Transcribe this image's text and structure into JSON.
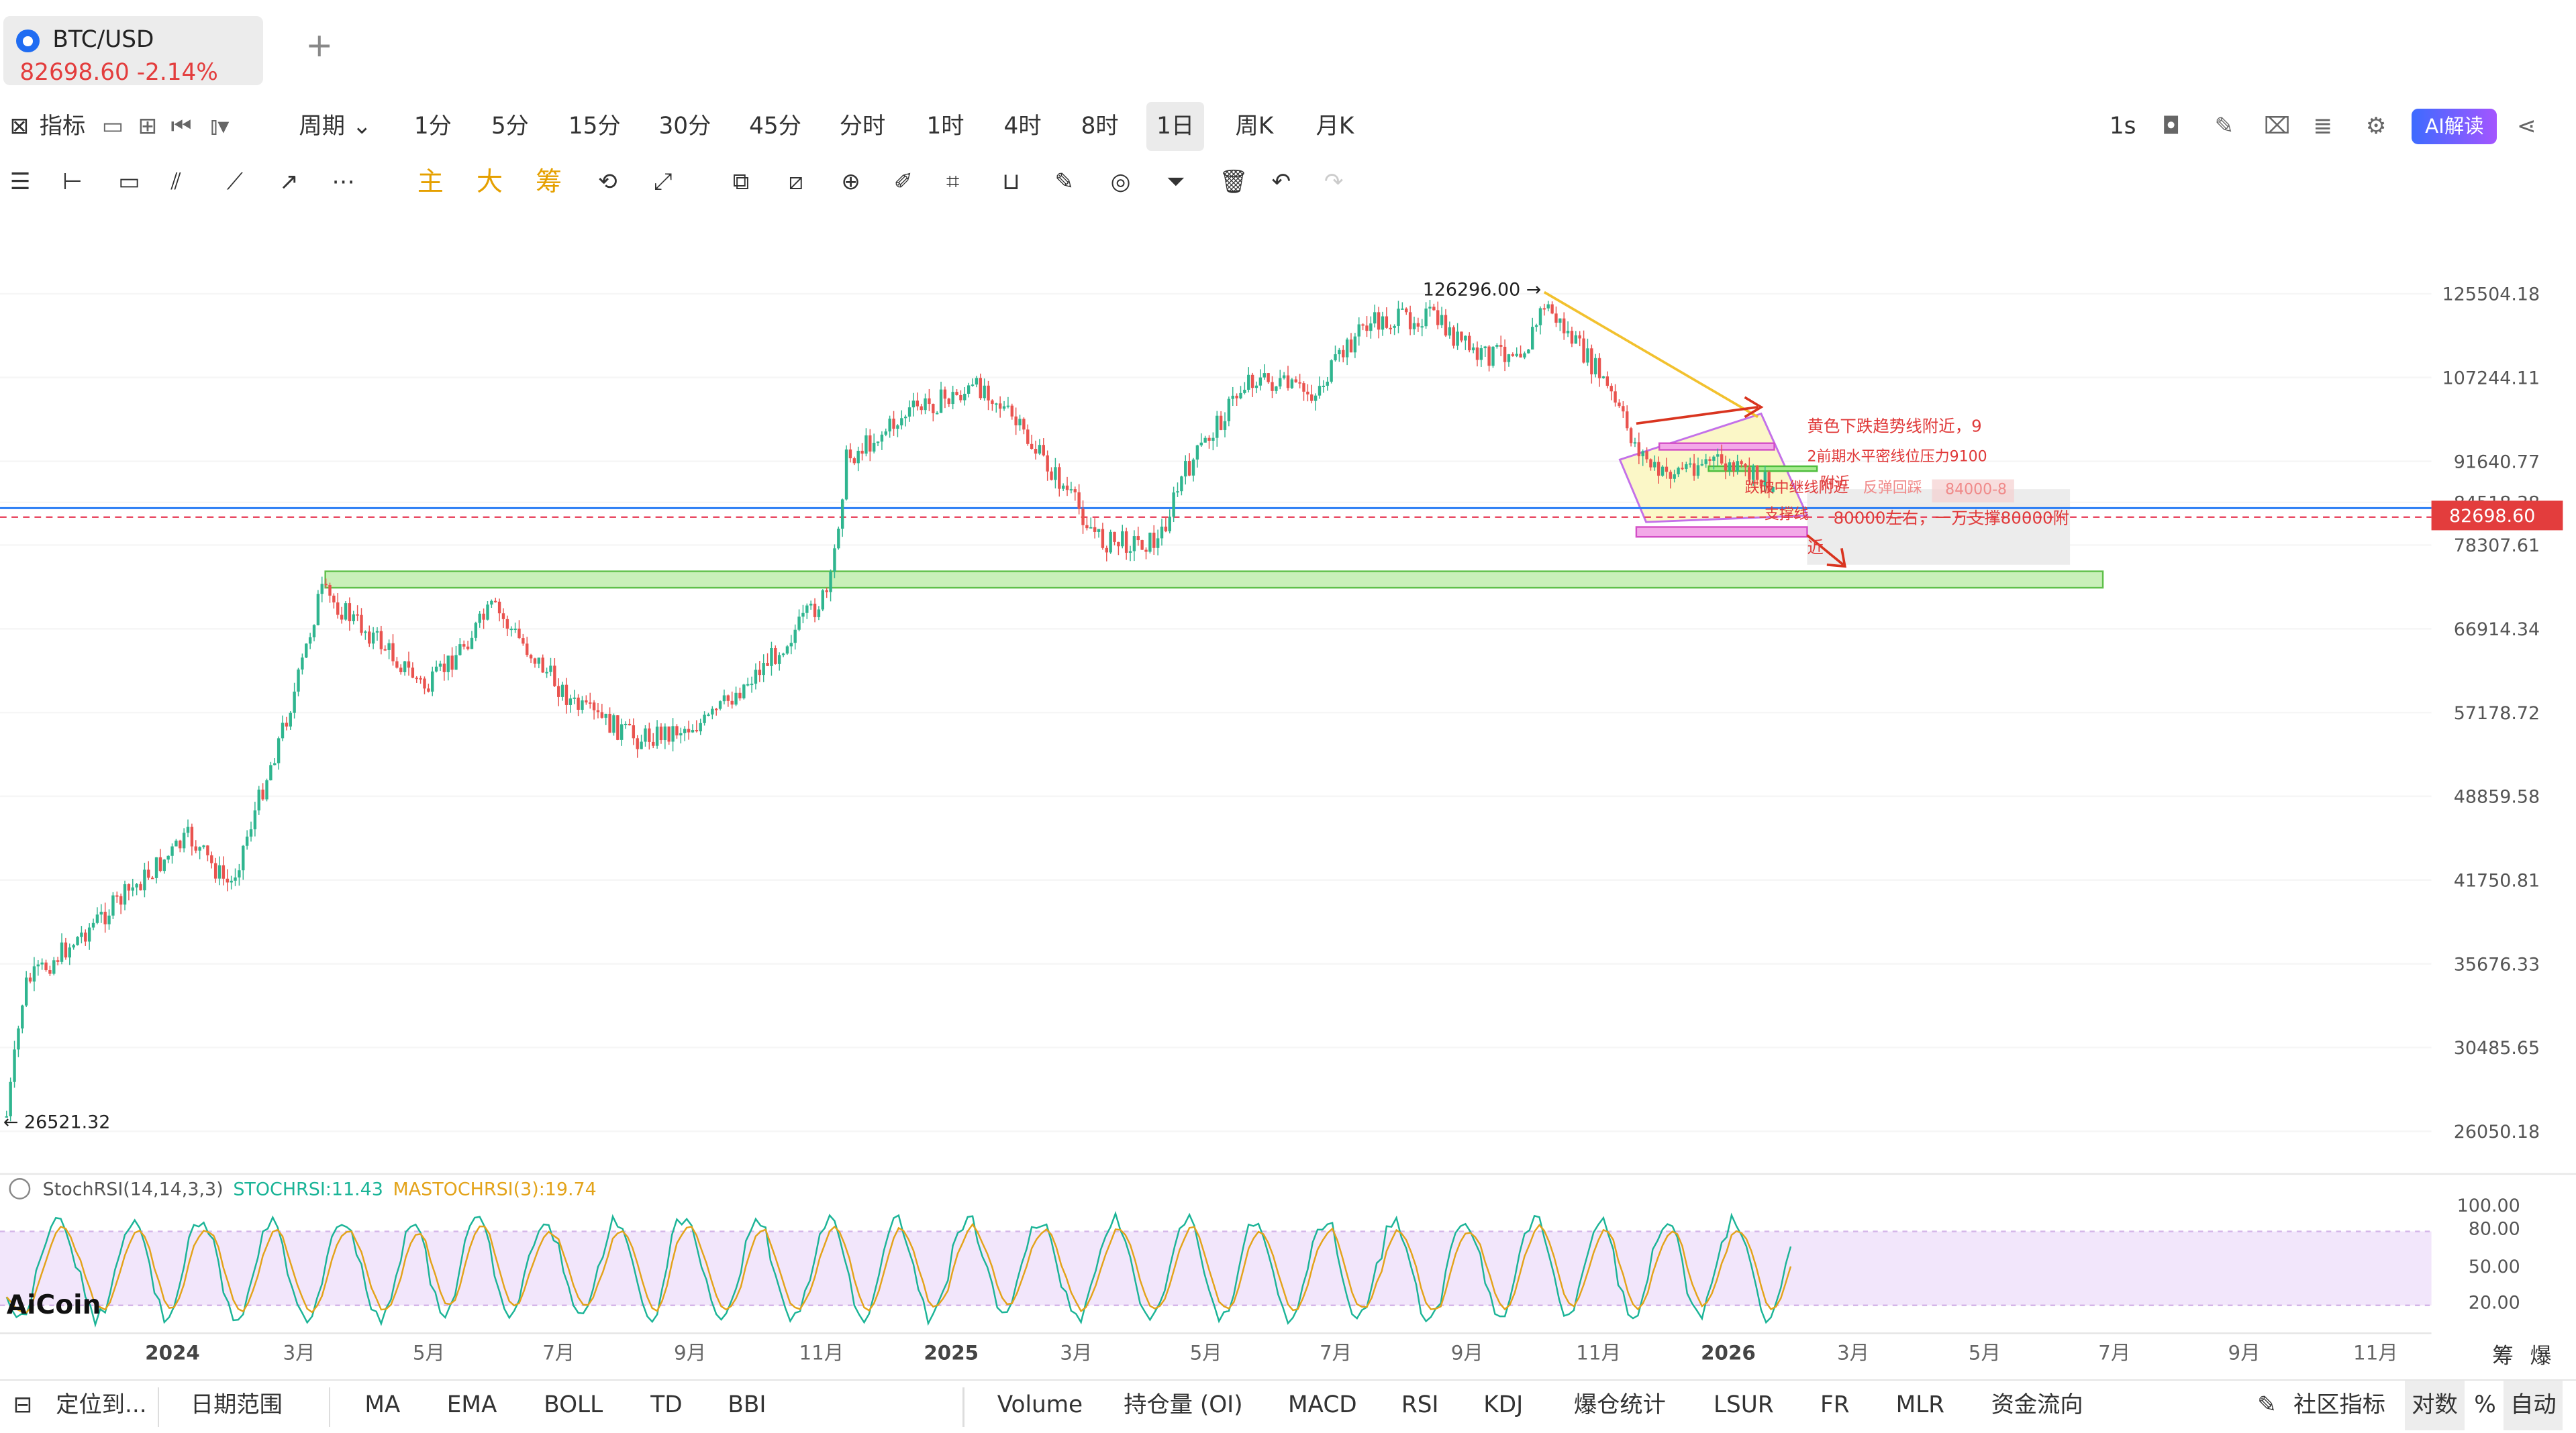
{
  "symbol": {
    "name": "BTC/USD",
    "price": "82698.60",
    "change": "-2.14%",
    "add_tab": "+"
  },
  "toolbar1": {
    "indicators": "指标",
    "period": "周期",
    "timeframes": [
      "1分",
      "5分",
      "15分",
      "30分",
      "45分",
      "分时",
      "1时",
      "4时",
      "8时",
      "1日",
      "周K",
      "月K"
    ],
    "selected": "1日",
    "interval": "1s",
    "ai_button": "AI解读"
  },
  "toolbar2": {
    "main": "主",
    "big": "大",
    "chips": "筹"
  },
  "chart_data": {
    "type": "candlestick",
    "symbol": "BTC/USD",
    "interval": "1日",
    "y_axis_ticks": [
      "125504.18",
      "107244.11",
      "91640.77",
      "84518.38",
      "78307.61",
      "66914.34",
      "57178.72",
      "48859.58",
      "41750.81",
      "35676.33",
      "30485.65",
      "26050.18"
    ],
    "x_axis_ticks": [
      "2024",
      "3月",
      "5月",
      "7月",
      "9月",
      "11月",
      "2025",
      "3月",
      "5月",
      "7月",
      "9月",
      "11月",
      "2026",
      "3月",
      "5月",
      "7月",
      "9月",
      "11月"
    ],
    "last_price": "82698.60",
    "high_label": "126296.00",
    "low_label": "26521.32",
    "annotations": [
      "黄色下跌趋势线附近，9",
      "2前期水平密线位压力9100",
      "跌破中继线附近",
      "附近",
      "反弹回踩",
      "84000-8",
      "支撑线",
      "80000左右，一万支撑80000附",
      "近"
    ],
    "oscillator": {
      "label": "StochRSI(14,14,3,3)",
      "stochrsi": "STOCHRSI:11.43",
      "mastochrsi": "MASTOCHRSI(3):19.74",
      "ticks": [
        "100.00",
        "80.00",
        "50.00",
        "20.00"
      ]
    },
    "watermark": "AiCoin",
    "corner_labels": [
      "筹",
      "爆"
    ]
  },
  "bottom": {
    "locate": "定位到...",
    "range": "日期范围",
    "indicators": [
      "MA",
      "EMA",
      "BOLL",
      "TD",
      "BBI"
    ],
    "sub_indicators": [
      "Volume",
      "持仓量 (OI)",
      "MACD",
      "RSI",
      "KDJ",
      "爆仓统计",
      "LSUR",
      "FR",
      "MLR",
      "资金流向"
    ],
    "community": "社区指标",
    "log": "对数",
    "percent": "%",
    "auto": "自动"
  },
  "colors": {
    "up": "#2fb58f",
    "down": "#e9534f",
    "accent": "#1f6cf2",
    "last": "#e33d3d"
  }
}
